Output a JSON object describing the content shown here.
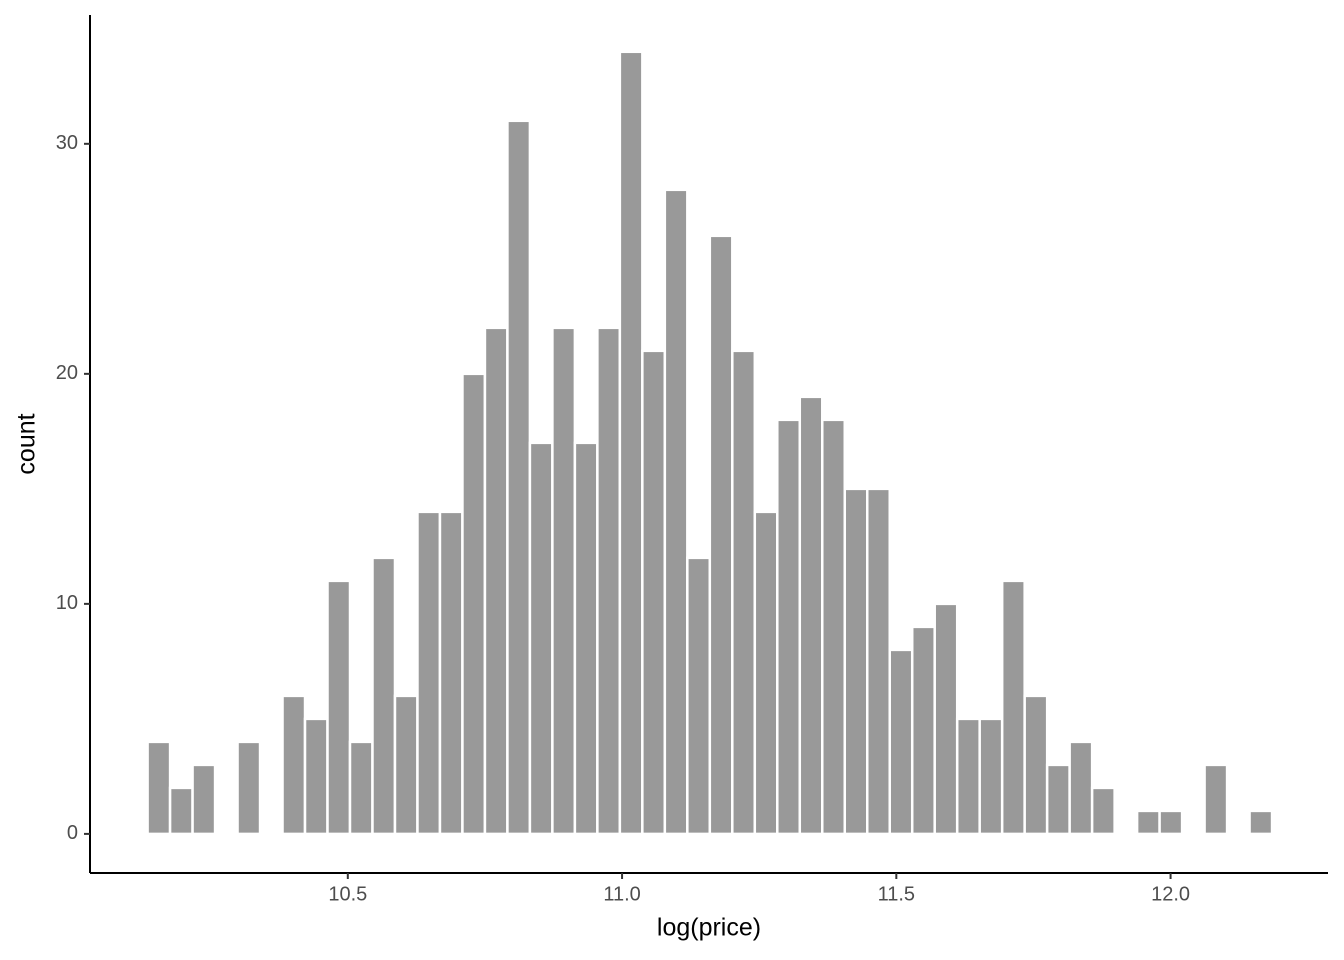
{
  "chart_data": {
    "type": "histogram",
    "x_label": "log(price)",
    "y_label": "count",
    "bins": [
      10.135,
      10.176,
      10.217,
      10.258,
      10.299,
      10.34,
      10.381,
      10.422,
      10.463,
      10.504,
      10.545,
      10.586,
      10.627,
      10.668,
      10.709,
      10.75,
      10.791,
      10.832,
      10.873,
      10.914,
      10.955,
      10.996,
      11.037,
      11.078,
      11.119,
      11.16,
      11.201,
      11.242,
      11.283,
      11.324,
      11.365,
      11.406,
      11.447,
      11.488,
      11.529,
      11.57,
      11.611,
      11.652,
      11.693,
      11.734,
      11.775,
      11.816,
      11.857,
      11.898,
      11.939,
      11.98,
      12.021,
      12.062,
      12.103,
      12.144,
      12.185
    ],
    "values": [
      4,
      2,
      3,
      0,
      4,
      0,
      6,
      5,
      11,
      4,
      12,
      6,
      14,
      14,
      20,
      22,
      31,
      17,
      22,
      17,
      22,
      34,
      21,
      28,
      12,
      26,
      21,
      14,
      18,
      19,
      18,
      15,
      15,
      8,
      9,
      10,
      5,
      5,
      11,
      6,
      3,
      4,
      2,
      0,
      1,
      1,
      0,
      3,
      0,
      1
    ],
    "color": "#999999",
    "xlim": [
      10.03,
      12.287
    ],
    "ylim": [
      -1.7,
      35.6
    ],
    "xticks": [
      {
        "value": 10.5,
        "label": "10.5"
      },
      {
        "value": 11.0,
        "label": "11.0"
      },
      {
        "value": 11.5,
        "label": "11.5"
      },
      {
        "value": 12.0,
        "label": "12.0"
      }
    ],
    "yticks": [
      0,
      10,
      20,
      30
    ],
    "grid": false
  }
}
